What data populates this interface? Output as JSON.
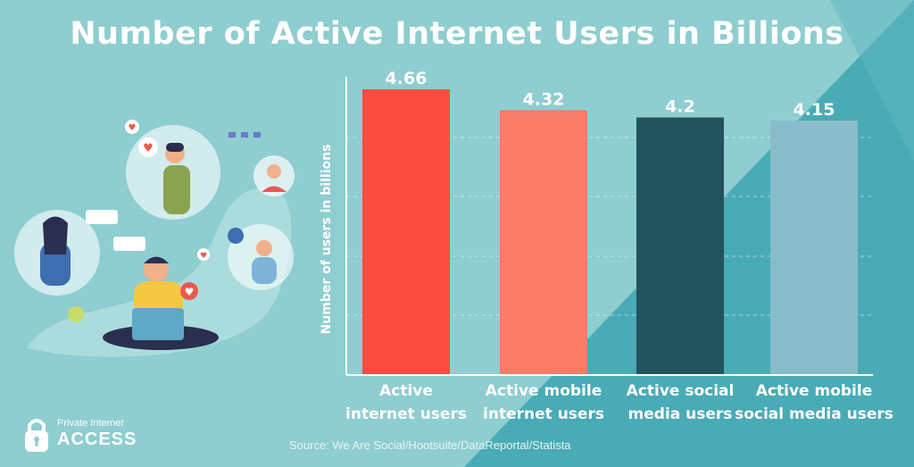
{
  "title": "Number of Active Internet Users in Billions",
  "source": "Source: We Are Social/Hootsuite/DataReportal/Statista",
  "logo": {
    "line1": "Private Internet",
    "line2": "ACCESS"
  },
  "colors": {
    "background": "#8ecdd0",
    "background_dark": "#46a9b3",
    "bar1": "#fd4b41",
    "bar2": "#fb7b69",
    "bar3": "#23535f",
    "bar4": "#88bcc9"
  },
  "chart_data": {
    "type": "bar",
    "title": "Number of Active Internet Users in Billions",
    "ylabel": "Number of users in billions",
    "xlabel": "",
    "categories": [
      [
        "Active",
        "internet users"
      ],
      [
        "Active mobile",
        "internet users"
      ],
      [
        "Active  social",
        "media users"
      ],
      [
        "Active mobile",
        "social media users"
      ]
    ],
    "values": [
      4.66,
      4.32,
      4.2,
      4.15
    ],
    "value_labels": [
      "4.66",
      "4.32",
      "4.2",
      "4.15"
    ],
    "bar_colors": [
      "#fd4b41",
      "#fb7b69",
      "#23535f",
      "#88bcc9"
    ],
    "grid": true,
    "legend": "none"
  }
}
